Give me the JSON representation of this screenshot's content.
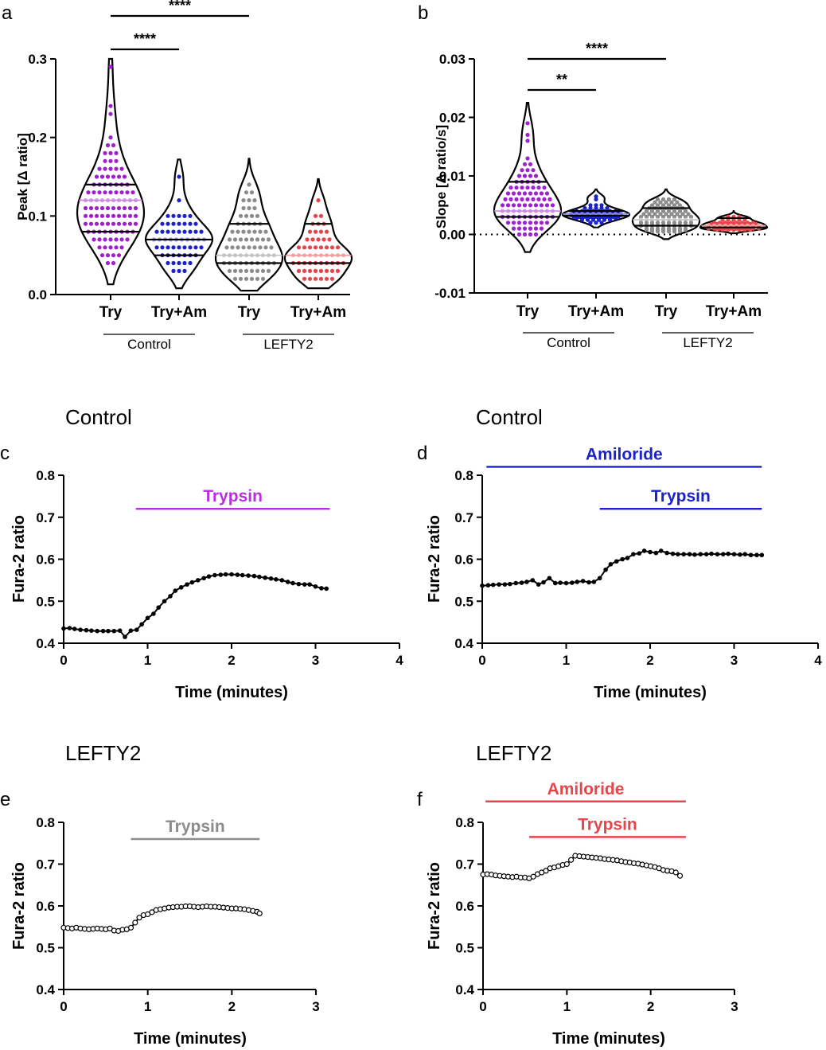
{
  "colors": {
    "try_control": "#a020d0",
    "try_am_control": "#1a22c8",
    "try_lefty2": "#8c8c8c",
    "try_am_lefty2": "#e8454a",
    "amiloride_d": "#1a22c8",
    "trypsin_d": "#1a22c8",
    "trypsin_c": "#b82ee0",
    "trypsin_e": "#8c8c8c",
    "amiloride_f": "#e8454a",
    "trypsin_f": "#e8454a"
  },
  "chart_data": [
    {
      "id": "a",
      "type": "violin",
      "panel_label": "a",
      "ylabel": "Peak [Δ ratio]",
      "ylim": [
        0,
        0.3
      ],
      "yticks": [
        0.0,
        0.1,
        0.2,
        0.3
      ],
      "ytick_labels": [
        "0.0",
        "0.1",
        "0.2",
        "0.3"
      ],
      "categories": [
        "Try",
        "Try+Am",
        "Try",
        "Try+Am"
      ],
      "groups": [
        "Control",
        "LEFTY2"
      ],
      "significance": [
        {
          "from": 0,
          "to": 1,
          "label": "****"
        },
        {
          "from": 0,
          "to": 2,
          "label": "****"
        }
      ],
      "series": [
        {
          "name": "Control Try",
          "min": 0.013,
          "max": 0.3,
          "median": 0.12,
          "q1": 0.08,
          "q3": 0.14,
          "values": [
            0.29,
            0.24,
            0.23,
            0.2,
            0.19,
            0.18,
            0.17,
            0.16,
            0.15,
            0.15,
            0.14,
            0.14,
            0.14,
            0.13,
            0.13,
            0.13,
            0.12,
            0.12,
            0.12,
            0.12,
            0.11,
            0.11,
            0.11,
            0.1,
            0.1,
            0.1,
            0.1,
            0.09,
            0.09,
            0.09,
            0.09,
            0.08,
            0.08,
            0.08,
            0.08,
            0.07,
            0.07,
            0.06,
            0.06,
            0.05,
            0.04
          ]
        },
        {
          "name": "Control Try+Am",
          "min": 0.008,
          "max": 0.172,
          "median": 0.07,
          "q1": 0.05,
          "q3": 0.07,
          "values": [
            0.15,
            0.12,
            0.1,
            0.1,
            0.09,
            0.08,
            0.08,
            0.07,
            0.07,
            0.07,
            0.07,
            0.07,
            0.06,
            0.05,
            0.05,
            0.04,
            0.03,
            0.03
          ]
        },
        {
          "name": "LEFTY2 Try",
          "min": 0.005,
          "max": 0.173,
          "median": 0.05,
          "q1": 0.04,
          "q3": 0.09,
          "values": [
            0.14,
            0.13,
            0.12,
            0.11,
            0.1,
            0.09,
            0.09,
            0.08,
            0.08,
            0.07,
            0.07,
            0.06,
            0.06,
            0.05,
            0.05,
            0.05,
            0.05,
            0.04,
            0.04,
            0.04,
            0.03,
            0.03,
            0.02,
            0.02,
            0.02
          ]
        },
        {
          "name": "LEFTY2 Try+Am",
          "min": 0.008,
          "max": 0.147,
          "median": 0.05,
          "q1": 0.04,
          "q3": 0.09,
          "values": [
            0.12,
            0.1,
            0.09,
            0.08,
            0.07,
            0.06,
            0.05,
            0.05,
            0.05,
            0.05,
            0.04,
            0.04,
            0.03,
            0.02,
            0.02,
            0.02
          ]
        }
      ]
    },
    {
      "id": "b",
      "type": "violin",
      "panel_label": "b",
      "ylabel": "Slope [Δ ratio/s]",
      "ylim": [
        -0.01,
        0.03
      ],
      "yticks": [
        -0.01,
        0.0,
        0.01,
        0.02,
        0.03
      ],
      "ytick_labels": [
        "-0.01",
        "0.00",
        "0.01",
        "0.02",
        "0.03"
      ],
      "zero_line": "dotted",
      "categories": [
        "Try",
        "Try+Am",
        "Try",
        "Try+Am"
      ],
      "groups": [
        "Control",
        "LEFTY2"
      ],
      "significance": [
        {
          "from": 0,
          "to": 1,
          "label": "**"
        },
        {
          "from": 0,
          "to": 2,
          "label": "****"
        }
      ],
      "series": [
        {
          "name": "Control Try",
          "min": -0.003,
          "max": 0.0225,
          "median": 0.004,
          "q1": 0.003,
          "q3": 0.009,
          "values": [
            0.019,
            0.017,
            0.016,
            0.013,
            0.012,
            0.011,
            0.01,
            0.009,
            0.009,
            0.008,
            0.008,
            0.007,
            0.007,
            0.006,
            0.006,
            0.006,
            0.005,
            0.005,
            0.005,
            0.004,
            0.004,
            0.004,
            0.004,
            0.003,
            0.003,
            0.003,
            0.003,
            0.002,
            0.002,
            0.002,
            0.001,
            0.001,
            0.0
          ]
        },
        {
          "name": "Control Try+Am",
          "min": 0.0012,
          "max": 0.0077,
          "median": 0.0035,
          "q1": 0.0032,
          "q3": 0.004,
          "values": [
            0.0065,
            0.006,
            0.005,
            0.0045,
            0.004,
            0.004,
            0.0038,
            0.0035,
            0.0035,
            0.0033,
            0.003,
            0.003,
            0.0028,
            0.0025,
            0.002
          ]
        },
        {
          "name": "LEFTY2 Try",
          "min": -0.0008,
          "max": 0.0077,
          "median": 0.0025,
          "q1": 0.0015,
          "q3": 0.0045,
          "values": [
            0.006,
            0.0055,
            0.005,
            0.0045,
            0.004,
            0.0035,
            0.003,
            0.003,
            0.0025,
            0.002,
            0.002,
            0.0015,
            0.001,
            0.0008,
            0.0005
          ]
        },
        {
          "name": "LEFTY2 Try+Am",
          "min": 0.0002,
          "max": 0.004,
          "median": 0.0015,
          "q1": 0.0012,
          "q3": 0.0028,
          "values": [
            0.003,
            0.0025,
            0.002,
            0.0018,
            0.0015,
            0.0012,
            0.001,
            0.0008
          ]
        }
      ]
    },
    {
      "id": "c",
      "type": "line",
      "panel_label": "c",
      "title": "Control",
      "xlabel": "Time (minutes)",
      "ylabel": "Fura-2 ratio",
      "xlim": [
        0,
        4
      ],
      "xticks": [
        0,
        1,
        2,
        3,
        4
      ],
      "ylim": [
        0.4,
        0.8
      ],
      "yticks": [
        0.4,
        0.5,
        0.6,
        0.7,
        0.8
      ],
      "ytick_labels": [
        "0.4",
        "0.5",
        "0.6",
        "0.7",
        "0.8"
      ],
      "marker": "filled",
      "treatments": [
        {
          "label": "Trypsin",
          "start": 0.86,
          "end": 3.17,
          "level": 0.72,
          "color_key": "trypsin_c"
        }
      ],
      "x": [
        0.0,
        0.07,
        0.13,
        0.2,
        0.27,
        0.33,
        0.4,
        0.47,
        0.53,
        0.6,
        0.67,
        0.73,
        0.8,
        0.87,
        0.93,
        1.0,
        1.07,
        1.13,
        1.2,
        1.27,
        1.33,
        1.4,
        1.47,
        1.53,
        1.6,
        1.67,
        1.73,
        1.8,
        1.87,
        1.93,
        2.0,
        2.07,
        2.13,
        2.2,
        2.27,
        2.33,
        2.4,
        2.47,
        2.53,
        2.6,
        2.67,
        2.73,
        2.8,
        2.87,
        2.93,
        3.0,
        3.07,
        3.13
      ],
      "y": [
        0.435,
        0.436,
        0.434,
        0.432,
        0.431,
        0.43,
        0.429,
        0.429,
        0.429,
        0.429,
        0.43,
        0.415,
        0.43,
        0.432,
        0.445,
        0.46,
        0.47,
        0.485,
        0.5,
        0.512,
        0.525,
        0.533,
        0.54,
        0.545,
        0.55,
        0.555,
        0.559,
        0.562,
        0.563,
        0.564,
        0.564,
        0.563,
        0.562,
        0.561,
        0.56,
        0.558,
        0.556,
        0.554,
        0.552,
        0.55,
        0.546,
        0.543,
        0.541,
        0.54,
        0.54,
        0.535,
        0.531,
        0.53
      ]
    },
    {
      "id": "d",
      "type": "line",
      "panel_label": "d",
      "title": "Control",
      "xlabel": "Time (minutes)",
      "ylabel": "Fura-2 ratio",
      "xlim": [
        0,
        4
      ],
      "xticks": [
        0,
        1,
        2,
        3,
        4
      ],
      "ylim": [
        0.4,
        0.8
      ],
      "yticks": [
        0.4,
        0.5,
        0.6,
        0.7,
        0.8
      ],
      "ytick_labels": [
        "0.4",
        "0.5",
        "0.6",
        "0.7",
        "0.8"
      ],
      "marker": "filled",
      "treatments": [
        {
          "label": "Amiloride",
          "start": 0.05,
          "end": 3.33,
          "level": 0.82,
          "color_key": "amiloride_d"
        },
        {
          "label": "Trypsin",
          "start": 1.4,
          "end": 3.33,
          "level": 0.72,
          "color_key": "trypsin_d"
        }
      ],
      "x": [
        0.0,
        0.07,
        0.13,
        0.2,
        0.27,
        0.33,
        0.4,
        0.47,
        0.53,
        0.6,
        0.67,
        0.73,
        0.8,
        0.87,
        0.93,
        1.0,
        1.07,
        1.13,
        1.2,
        1.27,
        1.33,
        1.4,
        1.47,
        1.53,
        1.6,
        1.67,
        1.73,
        1.8,
        1.87,
        1.93,
        2.0,
        2.07,
        2.13,
        2.2,
        2.27,
        2.33,
        2.4,
        2.47,
        2.53,
        2.6,
        2.67,
        2.73,
        2.8,
        2.87,
        2.93,
        3.0,
        3.07,
        3.13,
        3.2,
        3.27,
        3.33
      ],
      "y": [
        0.537,
        0.538,
        0.539,
        0.54,
        0.54,
        0.541,
        0.543,
        0.544,
        0.546,
        0.55,
        0.54,
        0.545,
        0.555,
        0.543,
        0.544,
        0.543,
        0.544,
        0.546,
        0.548,
        0.545,
        0.546,
        0.555,
        0.575,
        0.588,
        0.595,
        0.6,
        0.603,
        0.612,
        0.614,
        0.62,
        0.617,
        0.615,
        0.62,
        0.615,
        0.613,
        0.612,
        0.612,
        0.612,
        0.611,
        0.612,
        0.612,
        0.613,
        0.612,
        0.612,
        0.613,
        0.612,
        0.611,
        0.612,
        0.61,
        0.61,
        0.61
      ]
    },
    {
      "id": "e",
      "type": "line",
      "panel_label": "e",
      "title": "LEFTY2",
      "xlabel": "Time (minutes)",
      "ylabel": "Fura-2 ratio",
      "xlim": [
        0,
        3
      ],
      "xticks": [
        0,
        1,
        2,
        3
      ],
      "ylim": [
        0.4,
        0.8
      ],
      "yticks": [
        0.4,
        0.5,
        0.6,
        0.7,
        0.8
      ],
      "ytick_labels": [
        "0.4",
        "0.5",
        "0.6",
        "0.7",
        "0.8"
      ],
      "marker": "open",
      "treatments": [
        {
          "label": "Trypsin",
          "start": 0.8,
          "end": 2.33,
          "level": 0.76,
          "color_key": "trypsin_e"
        }
      ],
      "x": [
        0.0,
        0.05,
        0.1,
        0.15,
        0.2,
        0.25,
        0.3,
        0.35,
        0.4,
        0.45,
        0.5,
        0.55,
        0.6,
        0.65,
        0.7,
        0.75,
        0.8,
        0.85,
        0.9,
        0.95,
        1.0,
        1.05,
        1.1,
        1.15,
        1.2,
        1.25,
        1.3,
        1.35,
        1.4,
        1.45,
        1.5,
        1.55,
        1.6,
        1.65,
        1.7,
        1.75,
        1.8,
        1.85,
        1.9,
        1.95,
        2.0,
        2.05,
        2.1,
        2.15,
        2.2,
        2.25,
        2.3,
        2.33
      ],
      "y": [
        0.548,
        0.547,
        0.546,
        0.548,
        0.546,
        0.545,
        0.544,
        0.545,
        0.546,
        0.545,
        0.544,
        0.546,
        0.541,
        0.54,
        0.543,
        0.544,
        0.548,
        0.56,
        0.572,
        0.578,
        0.58,
        0.585,
        0.59,
        0.592,
        0.594,
        0.596,
        0.597,
        0.598,
        0.598,
        0.599,
        0.599,
        0.598,
        0.597,
        0.598,
        0.599,
        0.598,
        0.598,
        0.597,
        0.596,
        0.595,
        0.594,
        0.594,
        0.593,
        0.592,
        0.59,
        0.588,
        0.586,
        0.582
      ]
    },
    {
      "id": "f",
      "type": "line",
      "panel_label": "f",
      "title": "LEFTY2",
      "xlabel": "Time (minutes)",
      "ylabel": "Fura-2 ratio",
      "xlim": [
        0,
        3
      ],
      "xticks": [
        0,
        1,
        2,
        3
      ],
      "ylim": [
        0.4,
        0.8
      ],
      "yticks": [
        0.4,
        0.5,
        0.6,
        0.7,
        0.8
      ],
      "ytick_labels": [
        "0.4",
        "0.5",
        "0.6",
        "0.7",
        "0.8"
      ],
      "marker": "open",
      "treatments": [
        {
          "label": "Amiloride",
          "start": 0.03,
          "end": 2.42,
          "level": 0.85,
          "color_key": "amiloride_f"
        },
        {
          "label": "Trypsin",
          "start": 0.55,
          "end": 2.42,
          "level": 0.765,
          "color_key": "trypsin_f"
        }
      ],
      "x": [
        0.0,
        0.05,
        0.1,
        0.15,
        0.2,
        0.25,
        0.3,
        0.35,
        0.4,
        0.45,
        0.5,
        0.55,
        0.6,
        0.65,
        0.7,
        0.75,
        0.8,
        0.85,
        0.9,
        0.95,
        1.0,
        1.05,
        1.1,
        1.15,
        1.2,
        1.25,
        1.3,
        1.35,
        1.4,
        1.45,
        1.5,
        1.55,
        1.6,
        1.65,
        1.7,
        1.75,
        1.8,
        1.85,
        1.9,
        1.95,
        2.0,
        2.05,
        2.1,
        2.15,
        2.2,
        2.25,
        2.3,
        2.35
      ],
      "y": [
        0.675,
        0.676,
        0.675,
        0.673,
        0.672,
        0.671,
        0.67,
        0.669,
        0.67,
        0.668,
        0.668,
        0.666,
        0.67,
        0.676,
        0.68,
        0.684,
        0.69,
        0.692,
        0.695,
        0.698,
        0.7,
        0.71,
        0.72,
        0.719,
        0.718,
        0.717,
        0.716,
        0.715,
        0.714,
        0.712,
        0.711,
        0.71,
        0.709,
        0.707,
        0.705,
        0.704,
        0.702,
        0.701,
        0.699,
        0.697,
        0.695,
        0.693,
        0.69,
        0.686,
        0.684,
        0.683,
        0.68,
        0.672
      ]
    }
  ]
}
